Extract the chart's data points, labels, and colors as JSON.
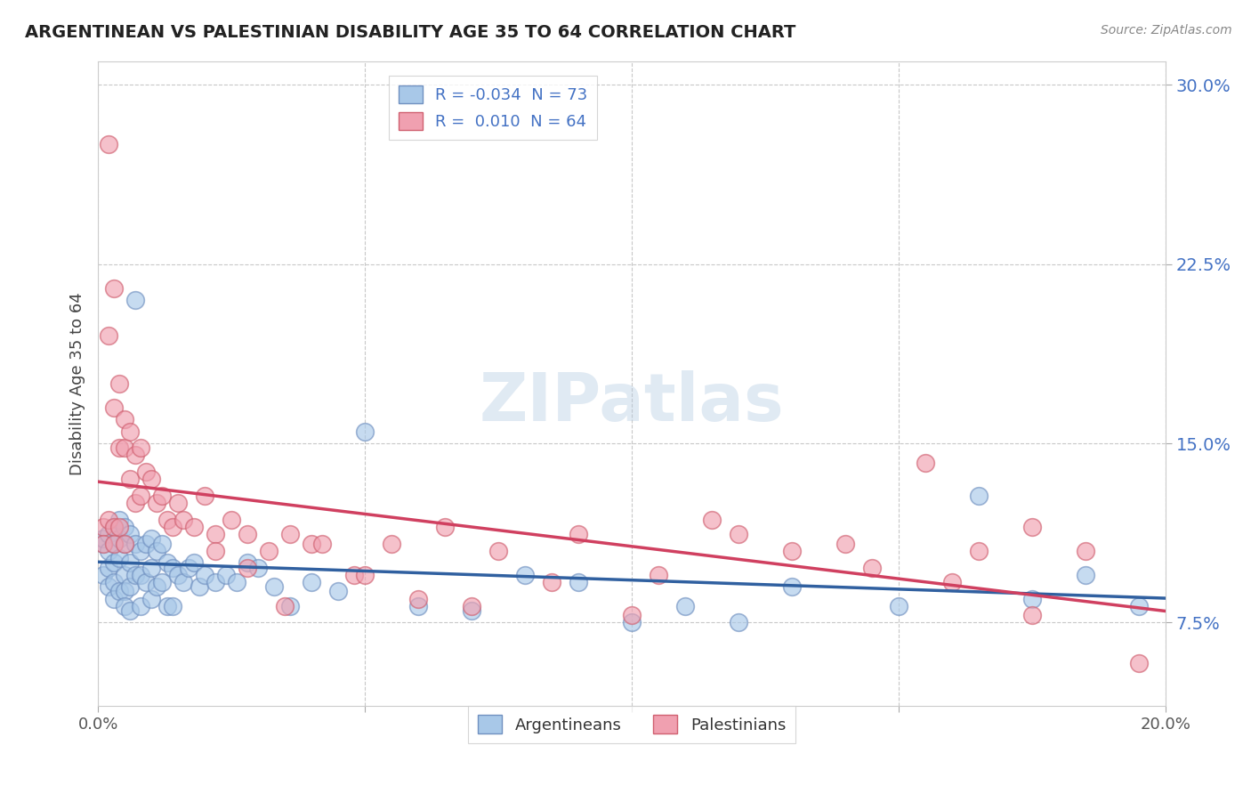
{
  "title": "ARGENTINEAN VS PALESTINIAN DISABILITY AGE 35 TO 64 CORRELATION CHART",
  "source": "Source: ZipAtlas.com",
  "ylabel": "Disability Age 35 to 64",
  "xlim": [
    0.0,
    0.2
  ],
  "ylim": [
    0.04,
    0.31
  ],
  "yticks": [
    0.075,
    0.15,
    0.225,
    0.3
  ],
  "ytick_labels": [
    "7.5%",
    "15.0%",
    "22.5%",
    "30.0%"
  ],
  "xticks": [
    0.0,
    0.05,
    0.1,
    0.15,
    0.2
  ],
  "xtick_labels": [
    "0.0%",
    "",
    "",
    "",
    "20.0%"
  ],
  "grid_color": "#c8c8c8",
  "background_color": "#ffffff",
  "watermark": "ZIPatlas",
  "blue_color": "#a8c8e8",
  "pink_color": "#f0a0b0",
  "blue_edge_color": "#7090c0",
  "pink_edge_color": "#d06070",
  "blue_line_color": "#3060a0",
  "pink_line_color": "#d04060",
  "legend_R_blue": "-0.034",
  "legend_N_blue": "73",
  "legend_R_pink": "0.010",
  "legend_N_pink": "64",
  "blue_x": [
    0.001,
    0.001,
    0.001,
    0.002,
    0.002,
    0.002,
    0.002,
    0.003,
    0.003,
    0.003,
    0.003,
    0.003,
    0.004,
    0.004,
    0.004,
    0.004,
    0.005,
    0.005,
    0.005,
    0.005,
    0.005,
    0.006,
    0.006,
    0.006,
    0.006,
    0.007,
    0.007,
    0.007,
    0.008,
    0.008,
    0.008,
    0.009,
    0.009,
    0.01,
    0.01,
    0.01,
    0.011,
    0.011,
    0.012,
    0.012,
    0.013,
    0.013,
    0.014,
    0.014,
    0.015,
    0.016,
    0.017,
    0.018,
    0.019,
    0.02,
    0.022,
    0.024,
    0.026,
    0.028,
    0.03,
    0.033,
    0.036,
    0.04,
    0.045,
    0.05,
    0.06,
    0.07,
    0.08,
    0.09,
    0.1,
    0.11,
    0.12,
    0.13,
    0.15,
    0.165,
    0.175,
    0.185,
    0.195
  ],
  "blue_y": [
    0.108,
    0.11,
    0.095,
    0.112,
    0.105,
    0.098,
    0.09,
    0.115,
    0.108,
    0.1,
    0.092,
    0.085,
    0.118,
    0.11,
    0.102,
    0.088,
    0.115,
    0.108,
    0.095,
    0.088,
    0.082,
    0.112,
    0.1,
    0.09,
    0.08,
    0.21,
    0.108,
    0.095,
    0.105,
    0.095,
    0.082,
    0.108,
    0.092,
    0.11,
    0.098,
    0.085,
    0.105,
    0.09,
    0.108,
    0.092,
    0.1,
    0.082,
    0.098,
    0.082,
    0.095,
    0.092,
    0.098,
    0.1,
    0.09,
    0.095,
    0.092,
    0.095,
    0.092,
    0.1,
    0.098,
    0.09,
    0.082,
    0.092,
    0.088,
    0.155,
    0.082,
    0.08,
    0.095,
    0.092,
    0.075,
    0.082,
    0.075,
    0.09,
    0.082,
    0.128,
    0.085,
    0.095,
    0.082
  ],
  "pink_x": [
    0.001,
    0.001,
    0.002,
    0.002,
    0.002,
    0.003,
    0.003,
    0.003,
    0.003,
    0.004,
    0.004,
    0.004,
    0.005,
    0.005,
    0.005,
    0.006,
    0.006,
    0.007,
    0.007,
    0.008,
    0.008,
    0.009,
    0.01,
    0.011,
    0.012,
    0.013,
    0.014,
    0.015,
    0.016,
    0.018,
    0.02,
    0.022,
    0.025,
    0.028,
    0.032,
    0.036,
    0.04,
    0.048,
    0.055,
    0.065,
    0.075,
    0.09,
    0.105,
    0.12,
    0.14,
    0.155,
    0.165,
    0.175,
    0.185,
    0.195,
    0.022,
    0.028,
    0.035,
    0.042,
    0.05,
    0.06,
    0.07,
    0.085,
    0.1,
    0.115,
    0.13,
    0.145,
    0.16,
    0.175
  ],
  "pink_y": [
    0.115,
    0.108,
    0.275,
    0.118,
    0.195,
    0.215,
    0.165,
    0.115,
    0.108,
    0.175,
    0.148,
    0.115,
    0.16,
    0.148,
    0.108,
    0.155,
    0.135,
    0.145,
    0.125,
    0.148,
    0.128,
    0.138,
    0.135,
    0.125,
    0.128,
    0.118,
    0.115,
    0.125,
    0.118,
    0.115,
    0.128,
    0.112,
    0.118,
    0.112,
    0.105,
    0.112,
    0.108,
    0.095,
    0.108,
    0.115,
    0.105,
    0.112,
    0.095,
    0.112,
    0.108,
    0.142,
    0.105,
    0.115,
    0.105,
    0.058,
    0.105,
    0.098,
    0.082,
    0.108,
    0.095,
    0.085,
    0.082,
    0.092,
    0.078,
    0.118,
    0.105,
    0.098,
    0.092,
    0.078
  ]
}
